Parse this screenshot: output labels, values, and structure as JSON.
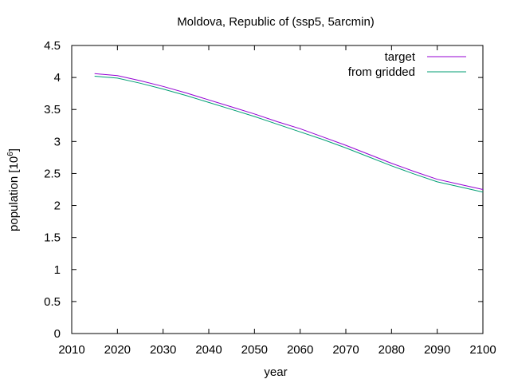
{
  "chart_data": {
    "type": "line",
    "title": "Moldova, Republic of (ssp5, 5arcmin)",
    "xlabel": "year",
    "ylabel_base": "population [10",
    "ylabel_exp": "6",
    "ylabel_close": "]",
    "xlim": [
      2010,
      2100
    ],
    "ylim": [
      0,
      4.5
    ],
    "x_ticks": [
      2010,
      2020,
      2030,
      2040,
      2050,
      2060,
      2070,
      2080,
      2090,
      2100
    ],
    "y_ticks": [
      0,
      0.5,
      1,
      1.5,
      2,
      2.5,
      3,
      3.5,
      4,
      4.5
    ],
    "x_tick_labels": [
      "2010",
      "2020",
      "2030",
      "2040",
      "2050",
      "2060",
      "2070",
      "2080",
      "2090",
      "2100"
    ],
    "y_tick_labels": [
      "0",
      "0.5",
      "1",
      "1.5",
      "2",
      "2.5",
      "3",
      "3.5",
      "4",
      "4.5"
    ],
    "legend_position": "top-right",
    "grid": false,
    "x": [
      2015,
      2020,
      2025,
      2030,
      2035,
      2040,
      2045,
      2050,
      2055,
      2060,
      2065,
      2070,
      2075,
      2080,
      2085,
      2090,
      2095,
      2100
    ],
    "series": [
      {
        "name": "target",
        "color": "#9400d3",
        "values": [
          4.06,
          4.03,
          3.95,
          3.86,
          3.76,
          3.65,
          3.54,
          3.43,
          3.31,
          3.2,
          3.07,
          2.94,
          2.8,
          2.66,
          2.53,
          2.41,
          2.33,
          2.25
        ]
      },
      {
        "name": "from gridded",
        "color": "#009e73",
        "values": [
          4.02,
          3.99,
          3.91,
          3.82,
          3.72,
          3.61,
          3.5,
          3.39,
          3.27,
          3.15,
          3.03,
          2.9,
          2.76,
          2.62,
          2.49,
          2.37,
          2.29,
          2.21
        ]
      }
    ]
  }
}
